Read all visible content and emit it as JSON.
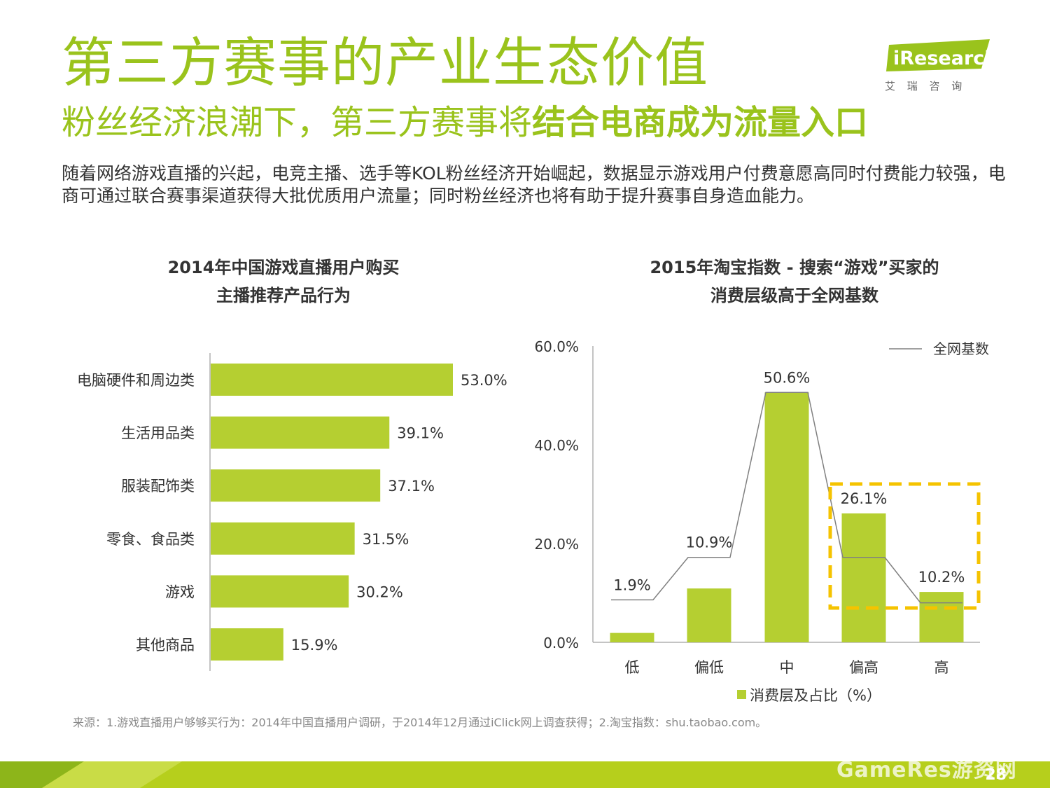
{
  "header": {
    "title": "第三方赛事的产业生态价值",
    "subtitle_normal": "粉丝经济浪潮下，第三方赛事将",
    "subtitle_bold": "结合电商成为流量入口",
    "description": "随着网络游戏直播的兴起，电竞主播、选手等KOL粉丝经济开始崛起，数据显示游戏用户付费意愿高同时付费能力较强，电商可通过联合赛事渠道获得大批优质用户流量；同时粉丝经济也将有助于提升赛事自身造血能力。"
  },
  "logo": {
    "brand": "iResearch",
    "cn": "艾 瑞 咨 询"
  },
  "chart_data": [
    {
      "type": "bar",
      "orientation": "horizontal",
      "title_line1": "2014年中国游戏直播用户购买",
      "title_line2": "主播推荐产品行为",
      "categories": [
        "电脑硬件和周边类",
        "生活用品类",
        "服装配饰类",
        "零食、食品类",
        "游戏",
        "其他商品"
      ],
      "values": [
        53.0,
        39.1,
        37.1,
        31.5,
        30.2,
        15.9
      ],
      "labels": [
        "53.0%",
        "39.1%",
        "37.1%",
        "31.5%",
        "30.2%",
        "15.9%"
      ],
      "unit": "%",
      "color": "#b5cf31"
    },
    {
      "type": "bar",
      "title_line1": "2015年淘宝指数 - 搜索“游戏”买家的",
      "title_line2": "消费层级高于全网基数",
      "categories": [
        "低",
        "偏低",
        "中",
        "偏高",
        "高"
      ],
      "series": [
        {
          "name": "消费层及占比（%）",
          "type": "bar",
          "values": [
            1.9,
            10.9,
            50.6,
            26.1,
            10.2
          ],
          "labels": [
            "1.9%",
            "10.9%",
            "50.6%",
            "26.1%",
            "10.2%"
          ]
        },
        {
          "name": "全网基数",
          "type": "line",
          "values": [
            8.6,
            17.2,
            50.6,
            17.2,
            8.0
          ]
        }
      ],
      "ylim": [
        0,
        60
      ],
      "yticks": [
        "0.0%",
        "20.0%",
        "40.0%",
        "60.0%"
      ],
      "ytick_values": [
        0,
        20,
        40,
        60
      ],
      "legend_line": "全网基数",
      "legend_bar": "消费层及占比（%）",
      "bar_color": "#b5cf31",
      "line_color": "#808080",
      "highlight_color": "#f5c300"
    }
  ],
  "footer": {
    "source": "来源：1.游戏直播用户够够买行为：2014年中国直播用户调研，于2014年12月通过iClick网上调查获得；2.淘宝指数：shu.taobao.com。",
    "page_number": "28",
    "watermark": "GameRes游资网"
  }
}
